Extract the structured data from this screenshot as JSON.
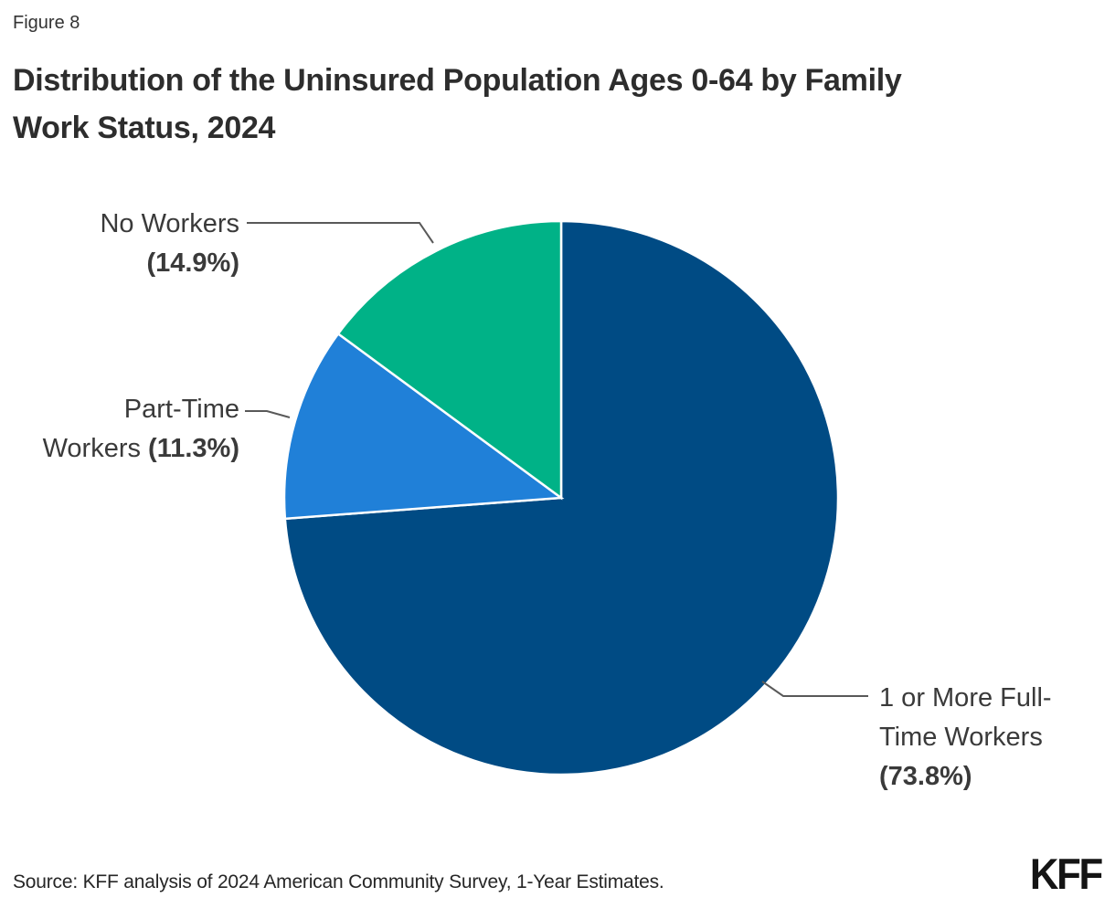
{
  "figure_label": "Figure 8",
  "title": {
    "line1": "Distribution of the Uninsured Population Ages 0-64 by Family",
    "line2": "Work Status, 2024",
    "full": "Distribution of the Uninsured Population Ages 0-64 by Family Work Status, 2024"
  },
  "source": "Source: KFF analysis of 2024 American Community Survey, 1-Year Estimates.",
  "logo": "KFF",
  "colors": {
    "full_time_slice": "#004B84",
    "part_time_slice": "#2080D8",
    "no_workers_slice": "#00B287",
    "slice_border": "#FFFFFF",
    "leader_line": "#595959",
    "title_text": "#2D2D2D",
    "label_text": "#3A3A3A",
    "background": "#FFFFFF"
  },
  "chart_data": {
    "type": "pie",
    "title": "Distribution of the Uninsured Population Ages 0-64 by Family Work Status, 2024",
    "unit": "%",
    "start_angle": "top",
    "direction": "clockwise",
    "legend": "none (direct callout labels with leader lines)",
    "slices": [
      {
        "label": "1 or More Full-Time Workers",
        "value": 73.8,
        "display": "1 or More Full-Time Workers (73.8%)",
        "color": "#004B84"
      },
      {
        "label": "Part-Time Workers",
        "value": 11.3,
        "display": "Part-Time Workers (11.3%)",
        "color": "#2080D8"
      },
      {
        "label": "No Workers",
        "value": 14.9,
        "display": "No Workers (14.9%)",
        "color": "#00B287"
      }
    ]
  },
  "callouts": [
    {
      "id": "no-workers",
      "lines": [
        [
          {
            "t": "No Workers",
            "b": false
          }
        ],
        [
          {
            "t": "(14.9%)",
            "b": true
          }
        ]
      ]
    },
    {
      "id": "part-time",
      "lines": [
        [
          {
            "t": "Part-Time",
            "b": false
          }
        ],
        [
          {
            "t": "Workers ",
            "b": false
          },
          {
            "t": "(11.3%)",
            "b": true
          }
        ]
      ]
    },
    {
      "id": "full-time",
      "lines": [
        [
          {
            "t": "1 or More Full-",
            "b": false
          }
        ],
        [
          {
            "t": "Time Workers",
            "b": false
          }
        ],
        [
          {
            "t": "(73.8%)",
            "b": true
          }
        ]
      ]
    }
  ]
}
